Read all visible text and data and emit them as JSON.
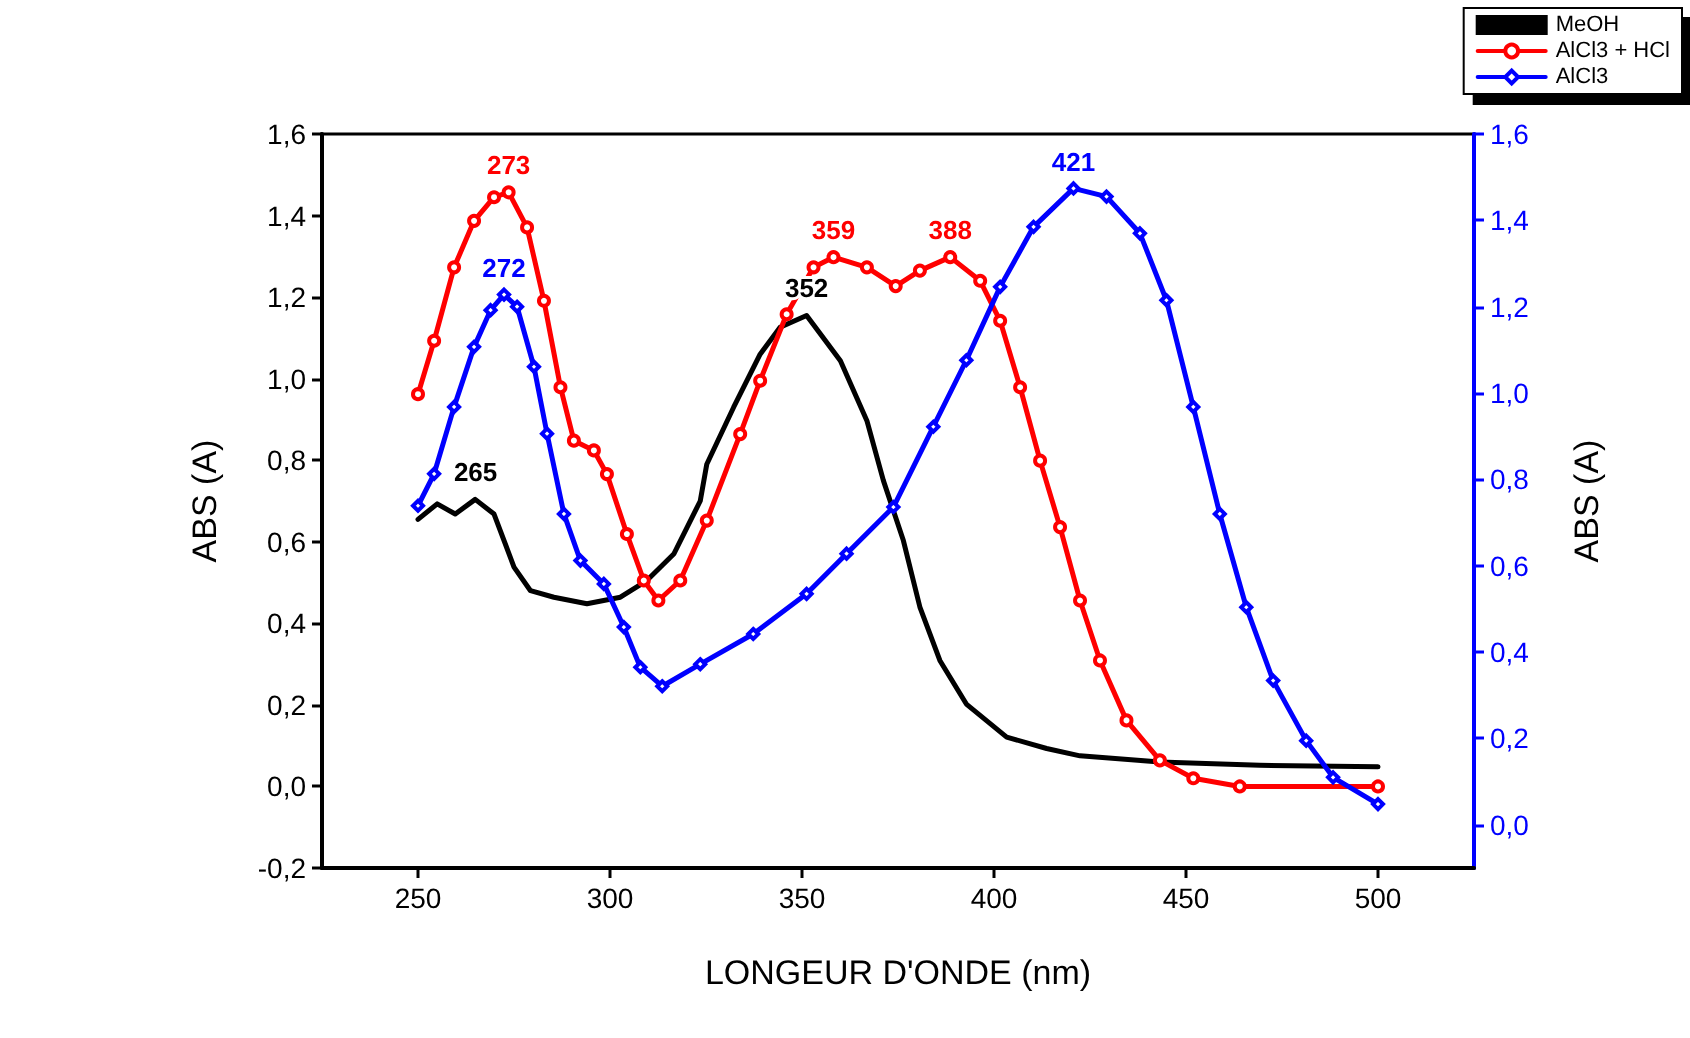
{
  "chart_data": {
    "type": "line",
    "xlabel": "LONGEUR D'ONDE (nm)",
    "ylabel": "ABS (A)",
    "y2label": "ABS (A)",
    "xlim": [
      225,
      525
    ],
    "xticks": [
      250,
      300,
      350,
      400,
      450,
      500
    ],
    "ylim": [
      -0.2,
      1.6
    ],
    "yticks": [
      {
        "value": -0.2,
        "label": "-0,2"
      },
      {
        "value": 0,
        "label": "0,0"
      },
      {
        "value": 0.2,
        "label": "0,2"
      },
      {
        "value": 0.4,
        "label": "0,4"
      },
      {
        "value": 0.6,
        "label": "0,6"
      },
      {
        "value": 0.8,
        "label": "0,8"
      },
      {
        "value": 1.0,
        "label": "1,0"
      },
      {
        "value": 1.2,
        "label": "1,2"
      },
      {
        "value": 1.4,
        "label": "1,4"
      },
      {
        "value": 1.6,
        "label": "1,6"
      }
    ],
    "y2lim": [
      -0.1,
      1.6
    ],
    "y2ticks": [
      {
        "value": 0,
        "label": "0,0"
      },
      {
        "value": 0.2,
        "label": "0,2"
      },
      {
        "value": 0.4,
        "label": "0,4"
      },
      {
        "value": 0.6,
        "label": "0,6"
      },
      {
        "value": 0.8,
        "label": "0,8"
      },
      {
        "value": 1.0,
        "label": "1,0"
      },
      {
        "value": 1.2,
        "label": "1,2"
      },
      {
        "value": 1.4,
        "label": "1,4"
      },
      {
        "value": 1.6,
        "label": "1,6"
      }
    ],
    "grid": false,
    "legend": "top right",
    "line_style": "solid",
    "series": [
      {
        "name": "MeOH",
        "color": "#000000",
        "marker": "none",
        "x": [
          250,
          255,
          259.7,
          264.9,
          269.8,
          275,
          279.3,
          285.4,
          294,
          302.7,
          309.6,
          316.6,
          323.5,
          325.2,
          332.2,
          339.1,
          344.3,
          351.2,
          360,
          366.9,
          371.2,
          376.4,
          380.7,
          385.9,
          392.8,
          403.3,
          413.7,
          422.4,
          443.2,
          469.2,
          500
        ],
        "values": [
          0.655,
          0.693,
          0.668,
          0.704,
          0.668,
          0.538,
          0.48,
          0.464,
          0.448,
          0.464,
          0.505,
          0.57,
          0.7,
          0.79,
          0.93,
          1.06,
          1.126,
          1.155,
          1.044,
          0.897,
          0.75,
          0.603,
          0.44,
          0.309,
          0.202,
          0.121,
          0.093,
          0.075,
          0.06,
          0.052,
          0.048
        ]
      },
      {
        "name": "AlCl3 + HCl",
        "color": "#ff0000",
        "marker": "circle",
        "x": [
          250,
          254.2,
          259.4,
          264.6,
          269.8,
          273.6,
          278.4,
          282.8,
          287.1,
          290.6,
          295.8,
          299.2,
          304.4,
          308.8,
          312.6,
          318.3,
          325.2,
          333.9,
          339.1,
          346,
          353,
          358.2,
          366.9,
          374.4,
          380.7,
          388.6,
          396.4,
          401.6,
          406.8,
          412,
          417.2,
          422.4,
          427.6,
          434.5,
          443.2,
          451.9,
          464,
          500
        ],
        "values": [
          0.962,
          1.093,
          1.273,
          1.387,
          1.445,
          1.457,
          1.371,
          1.191,
          0.979,
          0.848,
          0.824,
          0.766,
          0.619,
          0.505,
          0.456,
          0.505,
          0.652,
          0.864,
          0.995,
          1.158,
          1.273,
          1.298,
          1.273,
          1.227,
          1.265,
          1.298,
          1.24,
          1.142,
          0.979,
          0.799,
          0.636,
          0.456,
          0.309,
          0.162,
          0.064,
          0.02,
          0.0,
          0.0
        ]
      },
      {
        "name": "AlCl3",
        "color": "#0000ff",
        "marker": "diamond",
        "axis": "y2",
        "x": [
          250,
          254.2,
          259.4,
          264.6,
          268.9,
          272.4,
          275.8,
          280.2,
          283.6,
          288,
          292.3,
          298.4,
          303.6,
          307.9,
          313.6,
          323.5,
          337.3,
          351.2,
          361.6,
          373.8,
          384.2,
          392.8,
          401.6,
          410.3,
          420.7,
          429.3,
          438,
          444.9,
          451.9,
          458.8,
          465.7,
          472.7,
          481.3,
          488.3,
          500
        ],
        "values": [
          0.739,
          0.813,
          0.968,
          1.107,
          1.192,
          1.228,
          1.2,
          1.061,
          0.906,
          0.72,
          0.612,
          0.558,
          0.458,
          0.365,
          0.321,
          0.372,
          0.442,
          0.535,
          0.628,
          0.736,
          0.922,
          1.076,
          1.246,
          1.385,
          1.474,
          1.455,
          1.37,
          1.215,
          0.968,
          0.72,
          0.504,
          0.334,
          0.195,
          0.11,
          0.048
        ]
      }
    ],
    "annotations": [
      {
        "text": "265",
        "x": 265,
        "y": 0.704
      },
      {
        "text": "273",
        "x": 273.6,
        "y": 1.457
      },
      {
        "text": "272",
        "x": 272.4,
        "y": 1.204
      },
      {
        "text": "352",
        "x": 351.2,
        "y": 1.155
      },
      {
        "text": "359",
        "x": 358.2,
        "y": 1.298
      },
      {
        "text": "388",
        "x": 388.6,
        "y": 1.298
      },
      {
        "text": "421",
        "x": 420.7,
        "y": 1.464
      }
    ]
  }
}
